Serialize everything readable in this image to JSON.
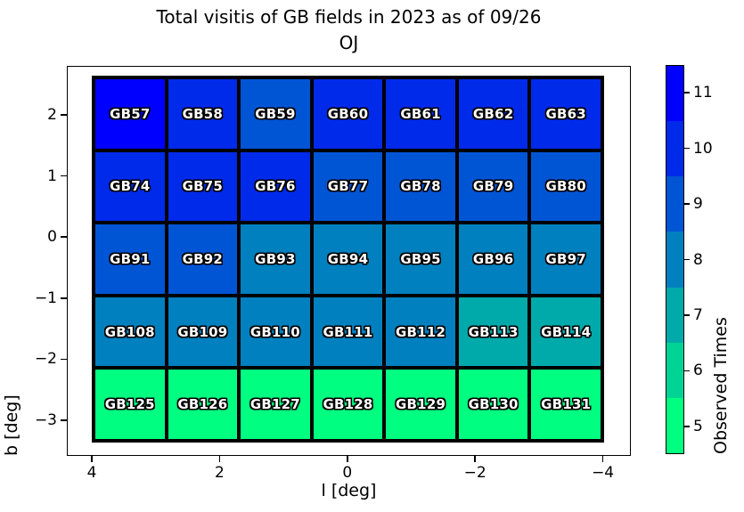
{
  "title_line1": "Total visitis of GB fields in 2023 as of 09/26",
  "title_line2": "OJ",
  "axes": {
    "xlabel": "l [deg]",
    "ylabel": "b [deg]",
    "x_ticks": [
      {
        "label": "4",
        "value": 4
      },
      {
        "label": "2",
        "value": 2
      },
      {
        "label": "0",
        "value": 0
      },
      {
        "label": "−2",
        "value": -2
      },
      {
        "label": "−4",
        "value": -4
      }
    ],
    "y_ticks": [
      {
        "label": "2",
        "value": 2
      },
      {
        "label": "1",
        "value": 1
      },
      {
        "label": "0",
        "value": 0
      },
      {
        "label": "−1",
        "value": -1
      },
      {
        "label": "−2",
        "value": -2
      },
      {
        "label": "−3",
        "value": -3
      }
    ]
  },
  "colorbar": {
    "label": "Observed Times",
    "ticks_top_to_bottom": [
      "11",
      "10",
      "9",
      "8",
      "7",
      "6",
      "5"
    ],
    "band_colors_top_to_bottom": [
      "#0000FF",
      "#002AEA",
      "#0055D5",
      "#0080BF",
      "#00AAAA",
      "#00D495",
      "#00FF80"
    ]
  },
  "chart_data": {
    "type": "heatmap",
    "title": "Total visitis of GB fields in 2023 as of 09/26 OJ",
    "xlabel": "l [deg]",
    "ylabel": "b [deg]",
    "colorbar_label": "Observed Times",
    "x_tick_values": [
      4,
      2,
      0,
      -2,
      -4
    ],
    "y_tick_values": [
      2,
      1,
      0,
      -1,
      -2,
      -3
    ],
    "value_range": [
      5,
      11
    ],
    "palette": {
      "5": "#00FF80",
      "6": "#00D495",
      "7": "#00AAAA",
      "8": "#0080BF",
      "9": "#0055D5",
      "10": "#002AEA",
      "11": "#0000FF"
    },
    "rows": [
      [
        {
          "label": "GB57",
          "value": 11
        },
        {
          "label": "GB58",
          "value": 10
        },
        {
          "label": "GB59",
          "value": 9
        },
        {
          "label": "GB60",
          "value": 10
        },
        {
          "label": "GB61",
          "value": 10
        },
        {
          "label": "GB62",
          "value": 10
        },
        {
          "label": "GB63",
          "value": 10
        }
      ],
      [
        {
          "label": "GB74",
          "value": 10
        },
        {
          "label": "GB75",
          "value": 10
        },
        {
          "label": "GB76",
          "value": 10
        },
        {
          "label": "GB77",
          "value": 9
        },
        {
          "label": "GB78",
          "value": 9
        },
        {
          "label": "GB79",
          "value": 9
        },
        {
          "label": "GB80",
          "value": 9
        }
      ],
      [
        {
          "label": "GB91",
          "value": 9
        },
        {
          "label": "GB92",
          "value": 9
        },
        {
          "label": "GB93",
          "value": 8
        },
        {
          "label": "GB94",
          "value": 8
        },
        {
          "label": "GB95",
          "value": 8
        },
        {
          "label": "GB96",
          "value": 8
        },
        {
          "label": "GB97",
          "value": 8
        }
      ],
      [
        {
          "label": "GB108",
          "value": 8
        },
        {
          "label": "GB109",
          "value": 8
        },
        {
          "label": "GB110",
          "value": 8
        },
        {
          "label": "GB111",
          "value": 8
        },
        {
          "label": "GB112",
          "value": 8
        },
        {
          "label": "GB113",
          "value": 7
        },
        {
          "label": "GB114",
          "value": 7
        }
      ],
      [
        {
          "label": "GB125",
          "value": 5
        },
        {
          "label": "GB126",
          "value": 5
        },
        {
          "label": "GB127",
          "value": 5
        },
        {
          "label": "GB128",
          "value": 5
        },
        {
          "label": "GB129",
          "value": 5
        },
        {
          "label": "GB130",
          "value": 5
        },
        {
          "label": "GB131",
          "value": 5
        }
      ]
    ]
  }
}
